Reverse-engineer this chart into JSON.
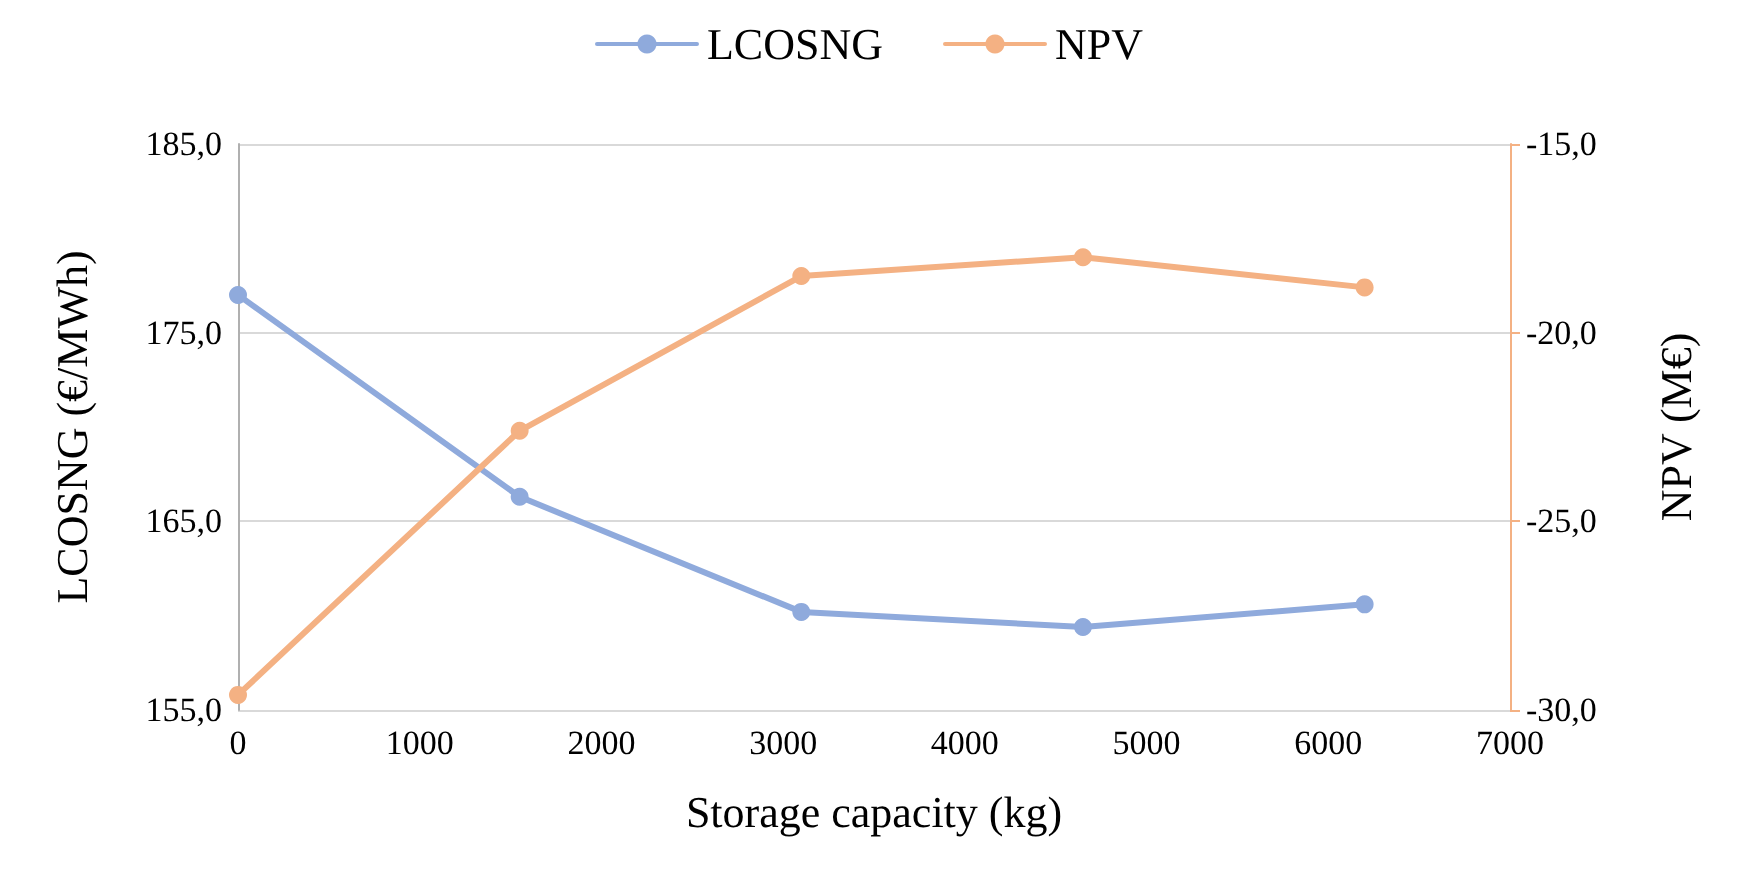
{
  "chart_data": {
    "type": "line",
    "xlabel": "Storage capacity (kg)",
    "ylabel": "LCOSNG (€/MWh)",
    "y2label": "NPV (M€)",
    "x": [
      0,
      1550,
      3100,
      4650,
      6200
    ],
    "series": [
      {
        "name": "LCOSNG",
        "color": "#8faadc",
        "values": [
          177.0,
          166.3,
          160.2,
          159.4,
          160.6
        ]
      },
      {
        "name": "NPV",
        "color": "#f4b183",
        "axis": "y2",
        "values": [
          -29.6,
          -22.6,
          -18.5,
          -18.0,
          -18.8
        ]
      }
    ],
    "xlim": [
      0,
      7000
    ],
    "xticks": [
      0,
      1000,
      2000,
      3000,
      4000,
      5000,
      6000,
      7000
    ],
    "ylim": [
      155,
      185
    ],
    "yticks": [
      {
        "value": 155,
        "label": "155,0"
      },
      {
        "value": 165,
        "label": "165,0"
      },
      {
        "value": 175,
        "label": "175,0"
      },
      {
        "value": 185,
        "label": "185,0"
      }
    ],
    "y2lim": [
      -30,
      -15
    ],
    "y2ticks": [
      {
        "value": -30,
        "label": "-30,0"
      },
      {
        "value": -25,
        "label": "-25,0"
      },
      {
        "value": -20,
        "label": "-20,0"
      },
      {
        "value": -15,
        "label": "-15,0"
      }
    ],
    "grid": "y",
    "legend": "top",
    "marker": "circle",
    "line_style": "solid"
  }
}
